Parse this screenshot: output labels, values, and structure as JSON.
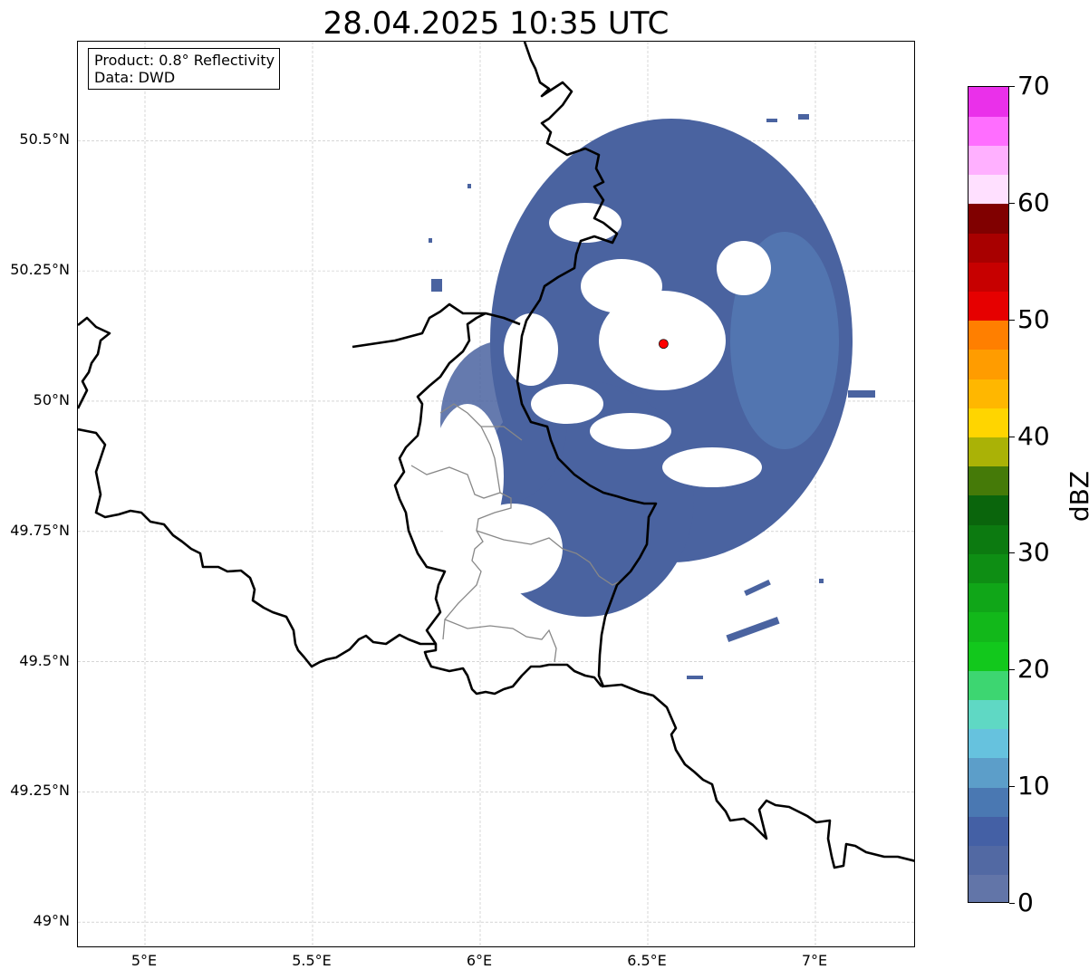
{
  "title": "28.04.2025 10:35 UTC",
  "info_box": {
    "product": "Product: 0.8° Reflectivity",
    "source": "Data: DWD"
  },
  "map": {
    "lon_range": [
      4.8,
      7.3
    ],
    "lat_range": [
      48.95,
      50.69
    ],
    "grid": true,
    "lat_ticks": [
      {
        "value": 50.5,
        "label": "50.5°N"
      },
      {
        "value": 50.25,
        "label": "50.25°N"
      },
      {
        "value": 50.0,
        "label": "50°N"
      },
      {
        "value": 49.75,
        "label": "49.75°N"
      },
      {
        "value": 49.5,
        "label": "49.5°N"
      },
      {
        "value": 49.25,
        "label": "49.25°N"
      },
      {
        "value": 49.0,
        "label": "49°N"
      }
    ],
    "lon_ticks": [
      {
        "value": 5.0,
        "label": "5°E"
      },
      {
        "value": 5.5,
        "label": "5.5°E"
      },
      {
        "value": 6.0,
        "label": "6°E"
      },
      {
        "value": 6.5,
        "label": "6.5°E"
      },
      {
        "value": 7.0,
        "label": "7°E"
      }
    ],
    "radar_site": {
      "lon": 6.547,
      "lat": 50.11,
      "color": "#ff0000"
    },
    "echo_color": "#4a63a0",
    "border_color": "#000000",
    "admin_border_color": "#888888"
  },
  "colorbar": {
    "label": "dBZ",
    "min": 0,
    "max": 70,
    "step": 2.5,
    "ticks": [
      {
        "value": 0,
        "label": "0"
      },
      {
        "value": 10,
        "label": "10"
      },
      {
        "value": 20,
        "label": "20"
      },
      {
        "value": 30,
        "label": "30"
      },
      {
        "value": 40,
        "label": "40"
      },
      {
        "value": 50,
        "label": "50"
      },
      {
        "value": 60,
        "label": "60"
      },
      {
        "value": 70,
        "label": "70"
      }
    ],
    "colors": [
      "#6275a8",
      "#5269a3",
      "#4460a5",
      "#4a78b2",
      "#5c9ec9",
      "#66c2de",
      "#5fd8c4",
      "#3dd671",
      "#12c81c",
      "#12b81a",
      "#10a618",
      "#0e8e14",
      "#0c7a10",
      "#0a650c",
      "#457a08",
      "#aab206",
      "#ffd500",
      "#ffb700",
      "#ff9c00",
      "#ff7f00",
      "#e60000",
      "#c70000",
      "#a80000",
      "#800000",
      "#ffe0ff",
      "#ffb0ff",
      "#ff6eff",
      "#ea30ea"
    ]
  }
}
